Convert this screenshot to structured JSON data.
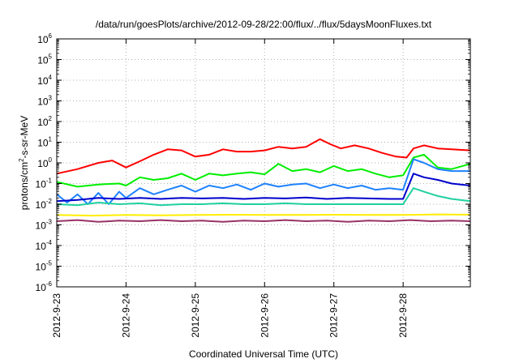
{
  "chart_data": {
    "type": "line",
    "title": "/data/run/goesPlots/archive/2012-09-28/22:00/flux/../flux/5daysMoonFluxes.txt",
    "xlabel": "Coordinated Universal Time (UTC)",
    "ylabel": {
      "pre": "protons/cm",
      "sup": "2",
      "post": "-s-sr-MeV"
    },
    "yscale": "log",
    "ylim_exp": [
      -6,
      6
    ],
    "y_tick_exponents": [
      -6,
      -5,
      -4,
      -3,
      -2,
      -1,
      0,
      1,
      2,
      3,
      4,
      5,
      6
    ],
    "y_tick_base": "10",
    "x_range_days": [
      0,
      5.97
    ],
    "x_ticks": [
      {
        "label": "2012-9-23",
        "day": 0
      },
      {
        "label": "2012-9-24",
        "day": 1
      },
      {
        "label": "2012-9-25",
        "day": 2
      },
      {
        "label": "2012-9-26",
        "day": 3
      },
      {
        "label": "2012-9-27",
        "day": 4
      },
      {
        "label": "2012-9-28",
        "day": 5
      }
    ],
    "grid": true,
    "series": [
      {
        "color": "#ff0000",
        "points": [
          [
            0,
            0.3
          ],
          [
            0.3,
            0.5
          ],
          [
            0.6,
            1.0
          ],
          [
            0.8,
            1.3
          ],
          [
            1.0,
            0.6
          ],
          [
            1.2,
            1.2
          ],
          [
            1.4,
            2.5
          ],
          [
            1.6,
            4.5
          ],
          [
            1.8,
            4.0
          ],
          [
            2.0,
            2.0
          ],
          [
            2.2,
            2.5
          ],
          [
            2.4,
            4.5
          ],
          [
            2.6,
            3.5
          ],
          [
            2.8,
            3.5
          ],
          [
            3.0,
            4.0
          ],
          [
            3.2,
            6.0
          ],
          [
            3.4,
            5.0
          ],
          [
            3.6,
            6.0
          ],
          [
            3.8,
            14.0
          ],
          [
            3.95,
            8.0
          ],
          [
            4.1,
            5.0
          ],
          [
            4.3,
            7.0
          ],
          [
            4.5,
            5.0
          ],
          [
            4.7,
            3.0
          ],
          [
            4.9,
            2.0
          ],
          [
            5.05,
            1.8
          ],
          [
            5.15,
            5.0
          ],
          [
            5.3,
            7.0
          ],
          [
            5.5,
            5.0
          ],
          [
            5.7,
            4.5
          ],
          [
            5.97,
            4.0
          ]
        ]
      },
      {
        "color": "#00ee00",
        "points": [
          [
            0,
            0.12
          ],
          [
            0.3,
            0.07
          ],
          [
            0.6,
            0.09
          ],
          [
            0.9,
            0.1
          ],
          [
            1.0,
            0.08
          ],
          [
            1.2,
            0.2
          ],
          [
            1.4,
            0.15
          ],
          [
            1.6,
            0.18
          ],
          [
            1.8,
            0.3
          ],
          [
            2.0,
            0.15
          ],
          [
            2.2,
            0.3
          ],
          [
            2.4,
            0.25
          ],
          [
            2.6,
            0.3
          ],
          [
            2.8,
            0.35
          ],
          [
            3.0,
            0.28
          ],
          [
            3.2,
            0.9
          ],
          [
            3.4,
            0.4
          ],
          [
            3.6,
            0.5
          ],
          [
            3.8,
            0.35
          ],
          [
            4.0,
            0.7
          ],
          [
            4.2,
            0.4
          ],
          [
            4.4,
            0.5
          ],
          [
            4.6,
            0.3
          ],
          [
            4.8,
            0.2
          ],
          [
            5.0,
            0.25
          ],
          [
            5.15,
            1.8
          ],
          [
            5.3,
            2.5
          ],
          [
            5.5,
            0.6
          ],
          [
            5.7,
            0.5
          ],
          [
            5.97,
            0.9
          ]
        ]
      },
      {
        "color": "#1e82ff",
        "points": [
          [
            0,
            0.03
          ],
          [
            0.15,
            0.012
          ],
          [
            0.3,
            0.03
          ],
          [
            0.45,
            0.01
          ],
          [
            0.6,
            0.035
          ],
          [
            0.75,
            0.01
          ],
          [
            0.9,
            0.04
          ],
          [
            1.0,
            0.02
          ],
          [
            1.2,
            0.06
          ],
          [
            1.4,
            0.03
          ],
          [
            1.6,
            0.05
          ],
          [
            1.8,
            0.08
          ],
          [
            2.0,
            0.04
          ],
          [
            2.2,
            0.08
          ],
          [
            2.4,
            0.06
          ],
          [
            2.6,
            0.09
          ],
          [
            2.8,
            0.05
          ],
          [
            3.0,
            0.1
          ],
          [
            3.2,
            0.07
          ],
          [
            3.4,
            0.09
          ],
          [
            3.6,
            0.1
          ],
          [
            3.8,
            0.06
          ],
          [
            4.0,
            0.09
          ],
          [
            4.2,
            0.06
          ],
          [
            4.4,
            0.08
          ],
          [
            4.6,
            0.05
          ],
          [
            4.8,
            0.06
          ],
          [
            5.0,
            0.05
          ],
          [
            5.15,
            1.5
          ],
          [
            5.3,
            1.0
          ],
          [
            5.5,
            0.5
          ],
          [
            5.7,
            0.4
          ],
          [
            5.97,
            0.4
          ]
        ]
      },
      {
        "color": "#0000cc",
        "points": [
          [
            0,
            0.014
          ],
          [
            0.3,
            0.016
          ],
          [
            0.6,
            0.02
          ],
          [
            0.9,
            0.018
          ],
          [
            1.2,
            0.02
          ],
          [
            1.5,
            0.018
          ],
          [
            1.8,
            0.02
          ],
          [
            2.1,
            0.019
          ],
          [
            2.4,
            0.02
          ],
          [
            2.7,
            0.018
          ],
          [
            3.0,
            0.02
          ],
          [
            3.3,
            0.019
          ],
          [
            3.6,
            0.021
          ],
          [
            3.9,
            0.018
          ],
          [
            4.2,
            0.02
          ],
          [
            4.5,
            0.019
          ],
          [
            4.8,
            0.018
          ],
          [
            5.0,
            0.018
          ],
          [
            5.15,
            0.3
          ],
          [
            5.3,
            0.2
          ],
          [
            5.5,
            0.15
          ],
          [
            5.7,
            0.1
          ],
          [
            5.97,
            0.08
          ]
        ]
      },
      {
        "color": "#20d0a0",
        "points": [
          [
            0,
            0.01
          ],
          [
            0.3,
            0.009
          ],
          [
            0.6,
            0.012
          ],
          [
            0.9,
            0.01
          ],
          [
            1.2,
            0.011
          ],
          [
            1.5,
            0.009
          ],
          [
            1.8,
            0.01
          ],
          [
            2.1,
            0.01
          ],
          [
            2.4,
            0.011
          ],
          [
            2.7,
            0.01
          ],
          [
            3.0,
            0.01
          ],
          [
            3.3,
            0.011
          ],
          [
            3.6,
            0.01
          ],
          [
            3.9,
            0.01
          ],
          [
            4.2,
            0.01
          ],
          [
            4.5,
            0.01
          ],
          [
            4.8,
            0.01
          ],
          [
            5.0,
            0.01
          ],
          [
            5.15,
            0.06
          ],
          [
            5.3,
            0.04
          ],
          [
            5.5,
            0.025
          ],
          [
            5.7,
            0.018
          ],
          [
            5.97,
            0.014
          ]
        ]
      },
      {
        "color": "#ffee00",
        "points": [
          [
            0,
            0.003
          ],
          [
            0.5,
            0.0028
          ],
          [
            1.0,
            0.003
          ],
          [
            1.5,
            0.0029
          ],
          [
            2.0,
            0.003
          ],
          [
            2.5,
            0.0031
          ],
          [
            3.0,
            0.003
          ],
          [
            3.5,
            0.003
          ],
          [
            4.0,
            0.0031
          ],
          [
            4.5,
            0.003
          ],
          [
            5.0,
            0.003
          ],
          [
            5.5,
            0.0032
          ],
          [
            5.97,
            0.0031
          ]
        ]
      },
      {
        "color": "#993366",
        "points": [
          [
            0,
            0.0015
          ],
          [
            0.3,
            0.0017
          ],
          [
            0.6,
            0.0014
          ],
          [
            0.9,
            0.0016
          ],
          [
            1.2,
            0.0015
          ],
          [
            1.5,
            0.0017
          ],
          [
            1.8,
            0.0015
          ],
          [
            2.1,
            0.0016
          ],
          [
            2.4,
            0.0014
          ],
          [
            2.7,
            0.0016
          ],
          [
            3.0,
            0.0015
          ],
          [
            3.3,
            0.0017
          ],
          [
            3.6,
            0.0015
          ],
          [
            3.9,
            0.0016
          ],
          [
            4.2,
            0.0014
          ],
          [
            4.5,
            0.0016
          ],
          [
            4.8,
            0.0015
          ],
          [
            5.1,
            0.0017
          ],
          [
            5.4,
            0.0015
          ],
          [
            5.7,
            0.0016
          ],
          [
            5.97,
            0.0015
          ]
        ]
      }
    ]
  }
}
